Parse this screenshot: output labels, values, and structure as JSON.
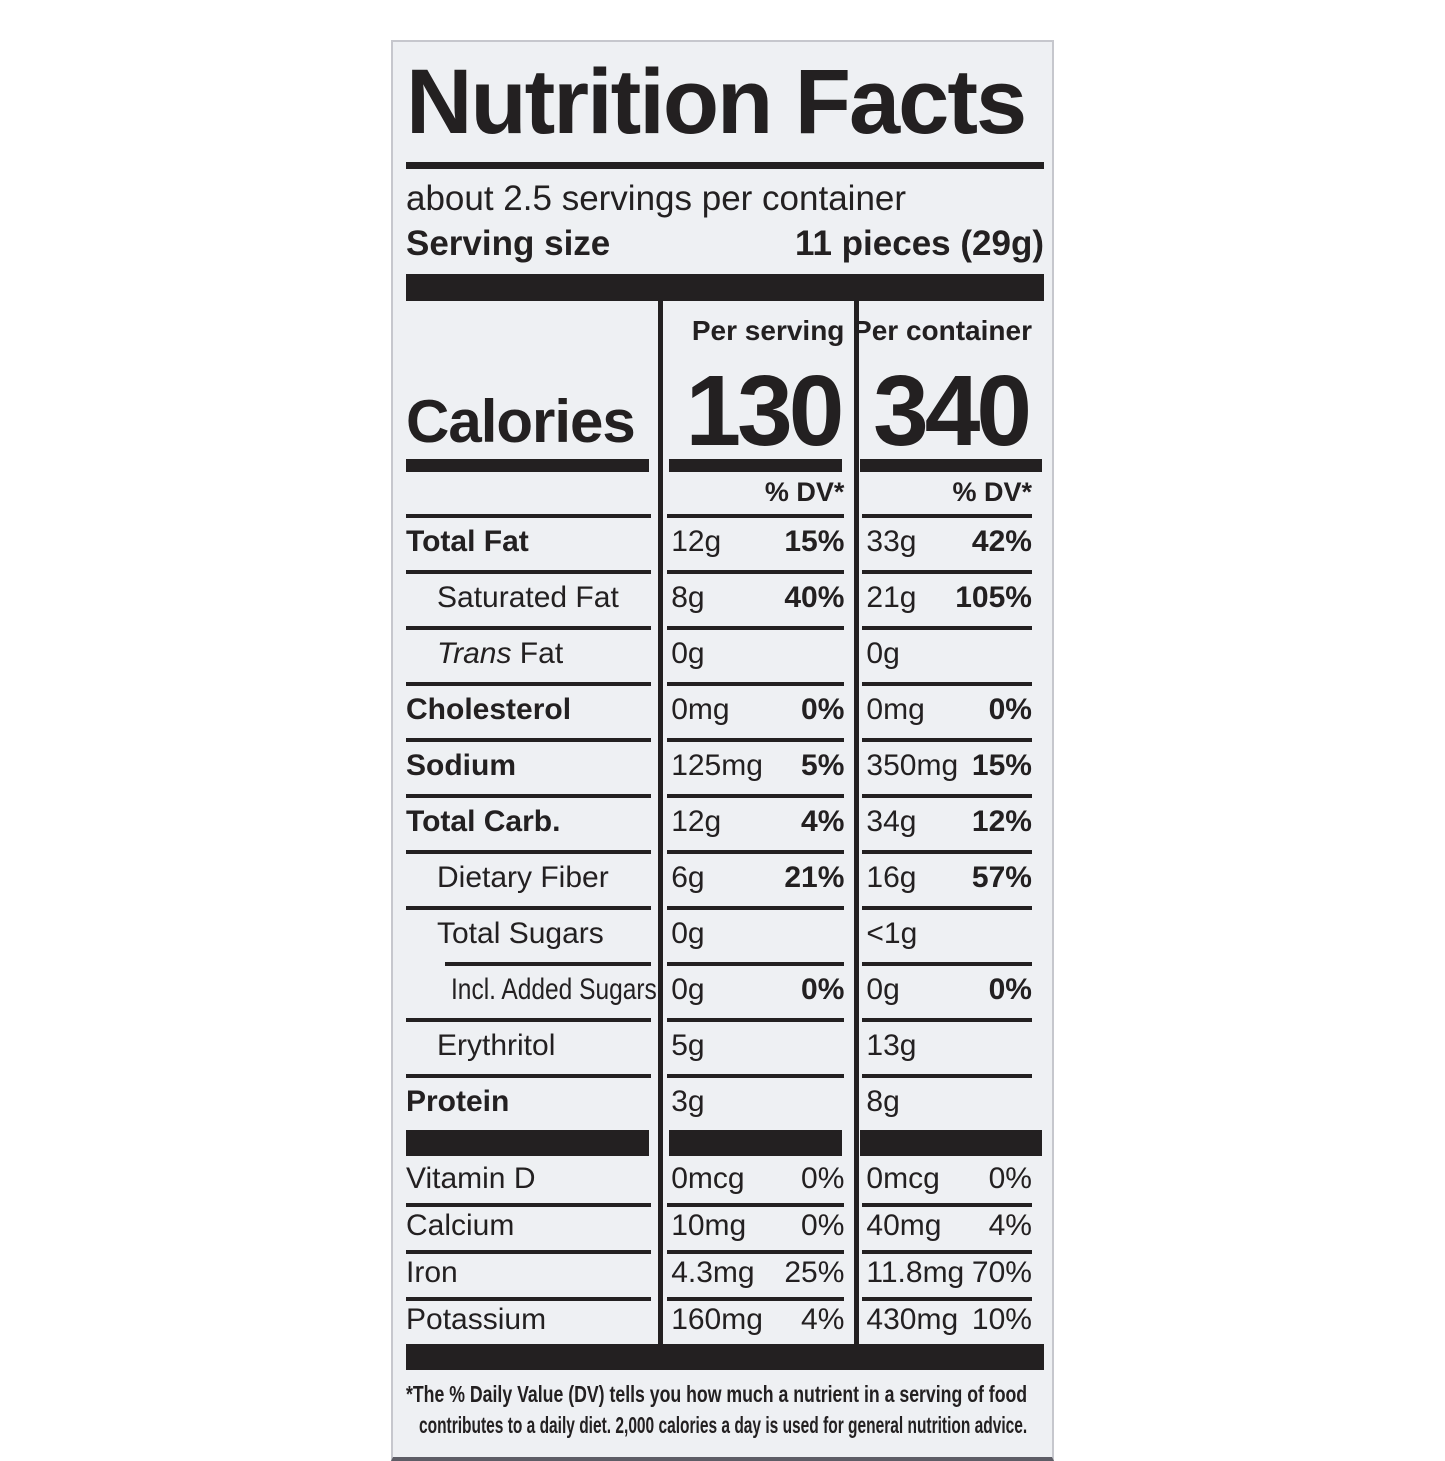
{
  "label": {
    "title": "Nutrition Facts",
    "servings_per_container": "about 2.5 servings per container",
    "serving_size_label": "Serving size",
    "serving_size_value": "11 pieces (29g)",
    "calories": {
      "col1_header": "Per serving",
      "col2_header": "Per container",
      "label": "Calories",
      "per_serving": "130",
      "per_container": "340",
      "dv_header": "% DV*"
    },
    "rows": [
      {
        "name": "Total Fat",
        "s_amt": "12g",
        "s_pct": "15%",
        "c_amt": "33g",
        "c_pct": "42%"
      },
      {
        "name": "Saturated Fat",
        "s_amt": "8g",
        "s_pct": "40%",
        "c_amt": "21g",
        "c_pct": "105%"
      },
      {
        "name_italic": "Trans",
        "name_rest": " Fat",
        "s_amt": "0g",
        "c_amt": "0g"
      },
      {
        "name": "Cholesterol",
        "s_amt": "0mg",
        "s_pct": "0%",
        "c_amt": "0mg",
        "c_pct": "0%"
      },
      {
        "name": "Sodium",
        "s_amt": "125mg",
        "s_pct": "5%",
        "c_amt": "350mg",
        "c_pct": "15%"
      },
      {
        "name": "Total Carb.",
        "s_amt": "12g",
        "s_pct": "4%",
        "c_amt": "34g",
        "c_pct": "12%"
      },
      {
        "name": "Dietary Fiber",
        "s_amt": "6g",
        "s_pct": "21%",
        "c_amt": "16g",
        "c_pct": "57%"
      },
      {
        "name": "Total Sugars",
        "s_amt": "0g",
        "c_amt": "<1g"
      },
      {
        "name": "Incl. Added Sugars",
        "s_amt": "0g",
        "s_pct": "0%",
        "c_amt": "0g",
        "c_pct": "0%"
      },
      {
        "name": "Erythritol",
        "s_amt": "5g",
        "c_amt": "13g"
      },
      {
        "name": "Protein",
        "s_amt": "3g",
        "c_amt": "8g"
      },
      {
        "name": "Vitamin D",
        "s_amt": "0mcg",
        "s_pct": "0%",
        "c_amt": "0mcg",
        "c_pct": "0%"
      },
      {
        "name": "Calcium",
        "s_amt": "10mg",
        "s_pct": "0%",
        "c_amt": "40mg",
        "c_pct": "4%"
      },
      {
        "name": "Iron",
        "s_amt": "4.3mg",
        "s_pct": "25%",
        "c_amt": "11.8mg",
        "c_pct": "70%"
      },
      {
        "name": "Potassium",
        "s_amt": "160mg",
        "s_pct": "4%",
        "c_amt": "430mg",
        "c_pct": "10%"
      }
    ],
    "footnote_line1": "*The % Daily Value (DV) tells you how much a nutrient in a serving of food",
    "footnote_line2": "contributes to a daily diet. 2,000 calories a day is used for general nutrition advice."
  }
}
